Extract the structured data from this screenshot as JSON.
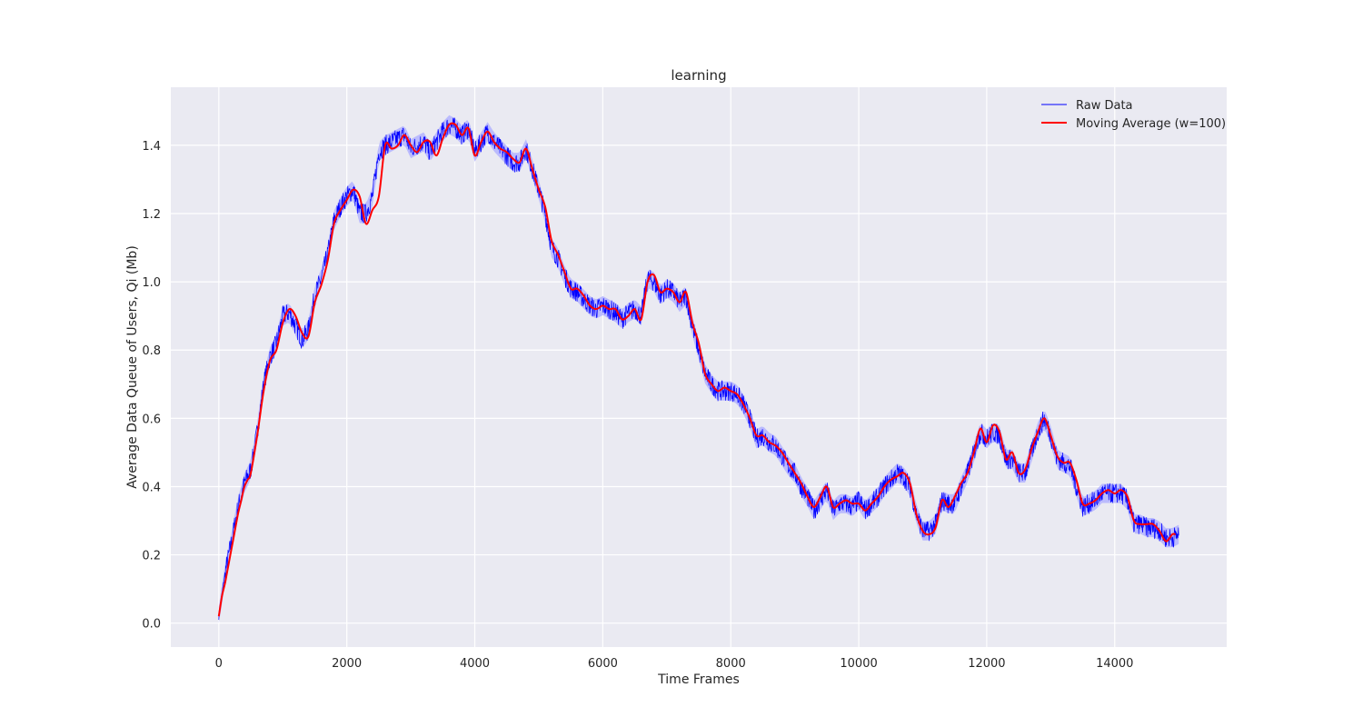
{
  "chart_data": {
    "type": "line",
    "title": "learning",
    "xlabel": "Time Frames",
    "ylabel": "Average Data Queue of Users, Qi (Mb)",
    "xlim": [
      -750,
      15750
    ],
    "ylim": [
      -0.07,
      1.57
    ],
    "xticks": [
      0,
      2000,
      4000,
      6000,
      8000,
      10000,
      12000,
      14000
    ],
    "yticks": [
      0.0,
      0.2,
      0.4,
      0.6,
      0.8,
      1.0,
      1.2,
      1.4
    ],
    "xtick_labels": [
      "0",
      "2000",
      "4000",
      "6000",
      "8000",
      "10000",
      "12000",
      "14000"
    ],
    "ytick_labels": [
      "0.0",
      "0.2",
      "0.4",
      "0.6",
      "0.8",
      "1.0",
      "1.2",
      "1.4"
    ],
    "grid": true,
    "legend_position": "top-right",
    "colors": {
      "background": "#eaeaf2",
      "grid": "#ffffff",
      "raw": "#0000ff",
      "raw_band": "#b3b3ff",
      "moving_average": "#ff0000"
    },
    "series": [
      {
        "name": "Raw Data",
        "style": "thin-noisy",
        "x": [
          0,
          100,
          200,
          300,
          400,
          500,
          600,
          700,
          800,
          900,
          1000,
          1100,
          1200,
          1300,
          1400,
          1500,
          1600,
          1700,
          1800,
          1900,
          2000,
          2100,
          2200,
          2300,
          2400,
          2500,
          2600,
          2700,
          2800,
          2900,
          3000,
          3100,
          3200,
          3300,
          3400,
          3500,
          3600,
          3700,
          3800,
          3900,
          4000,
          4100,
          4200,
          4300,
          4400,
          4500,
          4600,
          4700,
          4800,
          4900,
          5000,
          5100,
          5200,
          5300,
          5400,
          5500,
          5600,
          5700,
          5800,
          5900,
          6000,
          6100,
          6200,
          6300,
          6400,
          6500,
          6600,
          6700,
          6800,
          6900,
          7000,
          7100,
          7200,
          7300,
          7400,
          7500,
          7600,
          7700,
          7800,
          7900,
          8000,
          8100,
          8200,
          8300,
          8400,
          8500,
          8600,
          8700,
          8800,
          8900,
          9000,
          9100,
          9200,
          9300,
          9400,
          9500,
          9600,
          9700,
          9800,
          9900,
          10000,
          10100,
          10200,
          10300,
          10400,
          10500,
          10600,
          10700,
          10800,
          10900,
          11000,
          11100,
          11200,
          11300,
          11400,
          11500,
          11600,
          11700,
          11800,
          11900,
          12000,
          12100,
          12200,
          12300,
          12400,
          12500,
          12600,
          12700,
          12800,
          12900,
          13000,
          13100,
          13200,
          13300,
          13400,
          13500,
          13600,
          13700,
          13800,
          13900,
          14000,
          14100,
          14200,
          14300,
          14400,
          14500,
          14600,
          14700,
          14800,
          14900,
          15000
        ],
        "values": [
          0.02,
          0.15,
          0.24,
          0.34,
          0.41,
          0.45,
          0.56,
          0.7,
          0.78,
          0.82,
          0.9,
          0.91,
          0.87,
          0.83,
          0.86,
          0.96,
          1.01,
          1.08,
          1.18,
          1.22,
          1.25,
          1.27,
          1.2,
          1.2,
          1.25,
          1.38,
          1.4,
          1.41,
          1.42,
          1.43,
          1.39,
          1.4,
          1.41,
          1.38,
          1.41,
          1.44,
          1.46,
          1.45,
          1.43,
          1.45,
          1.38,
          1.41,
          1.44,
          1.41,
          1.39,
          1.37,
          1.35,
          1.35,
          1.39,
          1.33,
          1.27,
          1.2,
          1.1,
          1.07,
          1.02,
          0.98,
          0.97,
          0.95,
          0.93,
          0.92,
          0.93,
          0.92,
          0.91,
          0.89,
          0.91,
          0.92,
          0.9,
          1.01,
          1.0,
          0.96,
          0.98,
          0.97,
          0.94,
          0.96,
          0.87,
          0.8,
          0.73,
          0.7,
          0.68,
          0.68,
          0.68,
          0.67,
          0.64,
          0.6,
          0.54,
          0.55,
          0.53,
          0.52,
          0.49,
          0.46,
          0.44,
          0.4,
          0.37,
          0.33,
          0.36,
          0.39,
          0.33,
          0.35,
          0.35,
          0.34,
          0.36,
          0.33,
          0.35,
          0.37,
          0.4,
          0.42,
          0.44,
          0.43,
          0.4,
          0.32,
          0.27,
          0.27,
          0.29,
          0.36,
          0.35,
          0.35,
          0.4,
          0.44,
          0.5,
          0.56,
          0.54,
          0.56,
          0.55,
          0.48,
          0.48,
          0.44,
          0.44,
          0.5,
          0.56,
          0.6,
          0.55,
          0.48,
          0.47,
          0.46,
          0.4,
          0.34,
          0.35,
          0.36,
          0.38,
          0.38,
          0.38,
          0.38,
          0.36,
          0.29,
          0.29,
          0.28,
          0.28,
          0.27,
          0.25,
          0.25,
          0.26
        ]
      },
      {
        "name": "Moving Average (w=100)",
        "style": "smooth",
        "x": [
          0,
          50,
          100,
          150,
          200,
          250,
          300,
          350,
          400,
          450,
          500,
          600,
          700,
          800,
          900,
          1000,
          1100,
          1200,
          1300,
          1400,
          1500,
          1600,
          1700,
          1800,
          1900,
          2000,
          2100,
          2200,
          2300,
          2400,
          2500,
          2600,
          2700,
          2800,
          2900,
          3000,
          3100,
          3200,
          3300,
          3400,
          3500,
          3600,
          3700,
          3800,
          3900,
          4000,
          4100,
          4200,
          4300,
          4400,
          4500,
          4600,
          4700,
          4800,
          4900,
          5000,
          5100,
          5200,
          5300,
          5400,
          5500,
          5600,
          5700,
          5800,
          5900,
          6000,
          6100,
          6200,
          6300,
          6400,
          6500,
          6600,
          6700,
          6800,
          6900,
          7000,
          7100,
          7200,
          7300,
          7400,
          7500,
          7600,
          7700,
          7800,
          7900,
          8000,
          8100,
          8200,
          8300,
          8400,
          8500,
          8600,
          8700,
          8800,
          8900,
          9000,
          9100,
          9200,
          9300,
          9400,
          9500,
          9600,
          9700,
          9800,
          9900,
          10000,
          10100,
          10200,
          10300,
          10400,
          10500,
          10600,
          10700,
          10800,
          10900,
          11000,
          11100,
          11200,
          11300,
          11400,
          11500,
          11600,
          11700,
          11800,
          11900,
          12000,
          12100,
          12200,
          12300,
          12400,
          12500,
          12600,
          12700,
          12800,
          12900,
          13000,
          13100,
          13200,
          13300,
          13400,
          13500,
          13600,
          13700,
          13800,
          13900,
          14000,
          14100,
          14200,
          14300,
          14400,
          14500,
          14600,
          14700,
          14800,
          14900,
          14950
        ],
        "values": [
          0.02,
          0.08,
          0.12,
          0.17,
          0.22,
          0.27,
          0.32,
          0.36,
          0.4,
          0.42,
          0.44,
          0.55,
          0.68,
          0.77,
          0.8,
          0.88,
          0.92,
          0.9,
          0.85,
          0.84,
          0.94,
          0.99,
          1.06,
          1.17,
          1.21,
          1.24,
          1.27,
          1.25,
          1.17,
          1.21,
          1.25,
          1.4,
          1.39,
          1.4,
          1.43,
          1.4,
          1.38,
          1.41,
          1.41,
          1.37,
          1.42,
          1.46,
          1.46,
          1.43,
          1.45,
          1.37,
          1.41,
          1.44,
          1.41,
          1.39,
          1.38,
          1.36,
          1.35,
          1.39,
          1.33,
          1.27,
          1.22,
          1.12,
          1.08,
          1.03,
          0.98,
          0.98,
          0.96,
          0.93,
          0.92,
          0.93,
          0.92,
          0.92,
          0.89,
          0.9,
          0.92,
          0.89,
          1.0,
          1.02,
          0.97,
          0.98,
          0.97,
          0.94,
          0.97,
          0.88,
          0.82,
          0.73,
          0.7,
          0.68,
          0.69,
          0.68,
          0.67,
          0.64,
          0.6,
          0.55,
          0.55,
          0.53,
          0.52,
          0.5,
          0.47,
          0.44,
          0.41,
          0.37,
          0.34,
          0.37,
          0.4,
          0.34,
          0.35,
          0.36,
          0.35,
          0.35,
          0.33,
          0.35,
          0.37,
          0.4,
          0.42,
          0.43,
          0.44,
          0.41,
          0.32,
          0.27,
          0.26,
          0.28,
          0.36,
          0.34,
          0.37,
          0.41,
          0.44,
          0.5,
          0.57,
          0.53,
          0.58,
          0.56,
          0.48,
          0.5,
          0.44,
          0.45,
          0.51,
          0.56,
          0.6,
          0.55,
          0.49,
          0.47,
          0.47,
          0.42,
          0.35,
          0.35,
          0.36,
          0.38,
          0.39,
          0.38,
          0.39,
          0.37,
          0.3,
          0.29,
          0.29,
          0.29,
          0.27,
          0.24,
          0.26,
          0.26
        ]
      }
    ]
  }
}
